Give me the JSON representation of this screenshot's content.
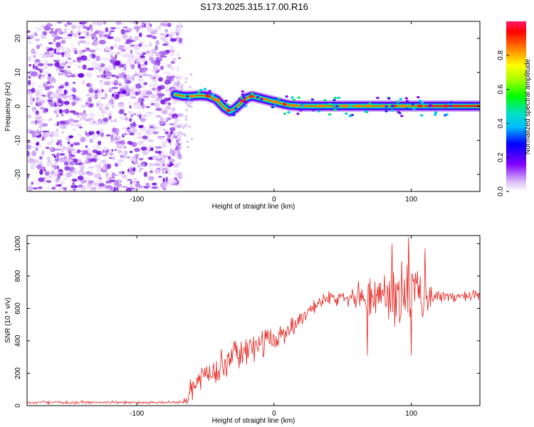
{
  "title": "S173.2025.315.17.00.R16",
  "chart_data": [
    {
      "type": "heatmap",
      "name": "spectrogram",
      "xlabel": "Height of straight line (km)",
      "ylabel": "Frequency (Hz)",
      "xlim": [
        -180,
        150
      ],
      "ylim": [
        -25,
        25
      ],
      "xticks": [
        -100,
        0,
        100
      ],
      "yticks": [
        20,
        10,
        0,
        -10,
        -20
      ],
      "noise_region_x": [
        -180,
        -72
      ],
      "ridge": {
        "x": [
          -72,
          -66,
          -60,
          -54,
          -48,
          -42,
          -36,
          -32,
          -28,
          -24,
          -20,
          -16,
          -12,
          -8,
          -4,
          0,
          4,
          8,
          12,
          16,
          20,
          30,
          40,
          50,
          60,
          70,
          80,
          90,
          100,
          110,
          120,
          130,
          140,
          150
        ],
        "freq": [
          3.5,
          3.0,
          3.0,
          3.2,
          3.0,
          2.0,
          -0.5,
          -1.5,
          -0.5,
          1.0,
          2.5,
          3.0,
          2.6,
          2.2,
          1.8,
          1.4,
          1.0,
          0.6,
          0.3,
          0.2,
          0.1,
          0.1,
          0.1,
          0.1,
          0.1,
          0.1,
          0.1,
          0.1,
          0.1,
          0.1,
          0.1,
          0.1,
          0.1,
          0.1
        ]
      },
      "colorbar": {
        "label": "Normalized spectral amplitude",
        "ticks": [
          0.0,
          0.2,
          0.4,
          0.6,
          0.8
        ],
        "range": [
          0,
          1
        ]
      }
    },
    {
      "type": "line",
      "name": "snr",
      "xlabel": "Height of straight line (km)",
      "ylabel": "SNR (10 * v/v)",
      "xlim": [
        -180,
        150
      ],
      "ylim": [
        0,
        1050
      ],
      "xticks": [
        -100,
        0,
        100
      ],
      "yticks": [
        0,
        200,
        400,
        600,
        800,
        1000
      ],
      "color": "#e8201a",
      "trend": {
        "x": [
          -180,
          -66,
          -62,
          -55,
          -45,
          -30,
          -15,
          0,
          15,
          25,
          35,
          50,
          70,
          90,
          110,
          130,
          150
        ],
        "y": [
          20,
          20,
          80,
          160,
          220,
          300,
          360,
          410,
          500,
          590,
          650,
          680,
          680,
          690,
          680,
          670,
          680
        ]
      },
      "noise_amplitude": {
        "x": [
          -180,
          -66,
          -62,
          -40,
          -20,
          0,
          20,
          40,
          60,
          70,
          85,
          100,
          110,
          120,
          150
        ],
        "y": [
          8,
          8,
          60,
          80,
          80,
          70,
          50,
          35,
          60,
          140,
          160,
          200,
          120,
          30,
          30
        ]
      },
      "spikes": [
        {
          "x": 100,
          "y": 1050
        },
        {
          "x": 86,
          "y": 1000
        },
        {
          "x": 68,
          "y": 310
        },
        {
          "x": 100,
          "y": 310
        },
        {
          "x": 98,
          "y": 1040
        },
        {
          "x": 110,
          "y": 970
        }
      ]
    }
  ]
}
